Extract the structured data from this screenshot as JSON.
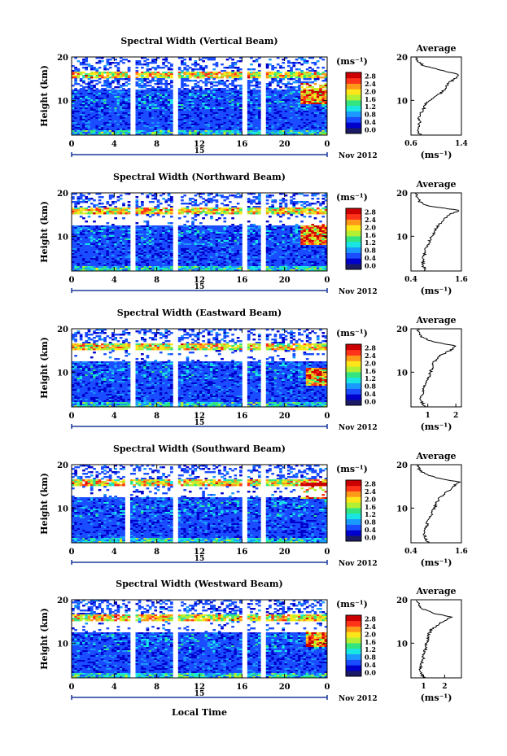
{
  "figure": {
    "x_title": "Local Time",
    "date_label": "Nov 2012",
    "day_label": "15",
    "y_label": "Height (km)",
    "avg_title": "Average",
    "avg_xunit": "(ms⁻¹)",
    "cbar_unit": "(ms⁻¹)",
    "cbar_ticks": [
      "0.0",
      "0.4",
      "0.8",
      "1.2",
      "1.6",
      "2.0",
      "2.4",
      "2.8"
    ],
    "colormap": [
      "#1a1a66",
      "#0000cc",
      "#1a4dff",
      "#1a99ff",
      "#19e5e5",
      "#33e57f",
      "#b3ef33",
      "#ffe61a",
      "#ff9919",
      "#ff3319",
      "#cc0000"
    ]
  },
  "chart_data": [
    {
      "type": "heatmap",
      "title": "Spectral Width (Vertical Beam)",
      "x_ticks": [
        "0",
        "4",
        "8",
        "12",
        "16",
        "20",
        "0"
      ],
      "y_ticks": [
        "20",
        "10"
      ],
      "xlim": [
        0,
        24
      ],
      "ylim": [
        2,
        20
      ],
      "gaps_hours": [
        [
          5.5,
          6
        ],
        [
          9.6,
          10
        ],
        [
          16,
          16.6
        ],
        [
          17.8,
          18.3
        ]
      ],
      "high_width_region": {
        "x": [
          21.5,
          24
        ],
        "y": [
          9,
          14
        ]
      },
      "avg_profile": {
        "xlim": [
          0.6,
          1.4
        ],
        "x_ticks": [
          "0.6",
          "1.4"
        ],
        "y_ticks": [
          "20",
          "10"
        ],
        "heights": [
          2,
          3,
          4,
          5,
          6,
          7,
          8,
          9,
          10,
          11,
          12,
          13,
          14,
          15,
          16,
          17,
          18,
          19,
          20
        ],
        "values": [
          0.75,
          0.7,
          0.72,
          0.74,
          0.72,
          0.75,
          0.8,
          0.82,
          0.9,
          1.0,
          1.1,
          1.15,
          1.2,
          1.3,
          1.35,
          1.05,
          0.8,
          0.7,
          0.68
        ]
      }
    },
    {
      "type": "heatmap",
      "title": "Spectral Width (Northward Beam)",
      "x_ticks": [
        "0",
        "4",
        "8",
        "12",
        "16",
        "20",
        "0"
      ],
      "y_ticks": [
        "20",
        "10"
      ],
      "xlim": [
        0,
        24
      ],
      "ylim": [
        2,
        20
      ],
      "gaps_hours": [
        [
          5.5,
          6
        ],
        [
          9.6,
          10
        ],
        [
          16,
          16.6
        ],
        [
          17.8,
          18.3
        ]
      ],
      "high_width_region": {
        "x": [
          21.5,
          24
        ],
        "y": [
          8,
          13
        ]
      },
      "avg_profile": {
        "xlim": [
          0.4,
          1.6
        ],
        "x_ticks": [
          "0.4",
          "1.6"
        ],
        "y_ticks": [
          "20",
          "10"
        ],
        "heights": [
          2,
          3,
          4,
          5,
          6,
          7,
          8,
          9,
          10,
          11,
          12,
          13,
          14,
          15,
          16,
          17,
          18,
          19,
          20
        ],
        "values": [
          0.75,
          0.7,
          0.68,
          0.7,
          0.72,
          0.75,
          0.8,
          0.85,
          0.9,
          0.95,
          1.0,
          1.1,
          1.2,
          1.3,
          1.55,
          0.8,
          0.6,
          0.55,
          0.5
        ]
      }
    },
    {
      "type": "heatmap",
      "title": "Spectral Width (Eastward Beam)",
      "x_ticks": [
        "0",
        "4",
        "8",
        "12",
        "16",
        "20",
        "0"
      ],
      "y_ticks": [
        "20",
        "10"
      ],
      "xlim": [
        0,
        24
      ],
      "ylim": [
        2,
        20
      ],
      "gaps_hours": [
        [
          5.5,
          6
        ],
        [
          9.6,
          10
        ],
        [
          16,
          16.6
        ],
        [
          17.8,
          18.3
        ]
      ],
      "high_width_region": {
        "x": [
          22,
          24
        ],
        "y": [
          7,
          11
        ]
      },
      "avg_profile": {
        "xlim": [
          0.4,
          2.2
        ],
        "x_ticks": [
          "1",
          "2"
        ],
        "y_ticks": [
          "20",
          "10"
        ],
        "heights": [
          2,
          3,
          4,
          5,
          6,
          7,
          8,
          9,
          10,
          11,
          12,
          13,
          14,
          15,
          16,
          17,
          18,
          19,
          20
        ],
        "values": [
          0.9,
          0.8,
          0.75,
          0.8,
          0.85,
          0.9,
          1.0,
          1.05,
          1.1,
          1.15,
          1.2,
          1.3,
          1.5,
          1.8,
          2.0,
          1.2,
          0.8,
          0.7,
          0.65
        ]
      }
    },
    {
      "type": "heatmap",
      "title": "Spectral Width (Southward Beam)",
      "x_ticks": [
        "0",
        "4",
        "8",
        "12",
        "16",
        "20",
        "0"
      ],
      "y_ticks": [
        "20",
        "10"
      ],
      "xlim": [
        0,
        24
      ],
      "ylim": [
        2,
        20
      ],
      "gaps_hours": [
        [
          5.1,
          5.6
        ],
        [
          9.6,
          10
        ],
        [
          16,
          16.6
        ],
        [
          17.8,
          18.3
        ]
      ],
      "high_width_region": {
        "x": [
          21.5,
          24
        ],
        "y": [
          12,
          16
        ]
      },
      "avg_profile": {
        "xlim": [
          0.4,
          1.6
        ],
        "x_ticks": [
          "0.4",
          "1.6"
        ],
        "y_ticks": [
          "20",
          "10"
        ],
        "heights": [
          2,
          3,
          4,
          5,
          6,
          7,
          8,
          9,
          10,
          11,
          12,
          13,
          14,
          15,
          16,
          17,
          18,
          19,
          20
        ],
        "values": [
          0.8,
          0.75,
          0.72,
          0.75,
          0.78,
          0.8,
          0.85,
          0.9,
          0.95,
          1.0,
          1.05,
          1.15,
          1.3,
          1.4,
          1.55,
          1.0,
          0.7,
          0.6,
          0.55
        ]
      }
    },
    {
      "type": "heatmap",
      "title": "Spectral Width (Westward Beam)",
      "x_ticks": [
        "0",
        "4",
        "8",
        "12",
        "16",
        "20",
        "0"
      ],
      "y_ticks": [
        "20",
        "10"
      ],
      "xlim": [
        0,
        24
      ],
      "ylim": [
        2,
        20
      ],
      "gaps_hours": [
        [
          5.5,
          6
        ],
        [
          9.6,
          10
        ],
        [
          16,
          16.6
        ],
        [
          17.8,
          18.3
        ]
      ],
      "high_width_region": {
        "x": [
          22,
          24
        ],
        "y": [
          9,
          13
        ]
      },
      "avg_profile": {
        "xlim": [
          0.4,
          2.8
        ],
        "x_ticks": [
          "1",
          "2"
        ],
        "y_ticks": [
          "20",
          "10"
        ],
        "heights": [
          2,
          3,
          4,
          5,
          6,
          7,
          8,
          9,
          10,
          11,
          12,
          13,
          14,
          15,
          16,
          17,
          18,
          19,
          20
        ],
        "values": [
          1.0,
          0.9,
          0.85,
          0.9,
          0.95,
          1.0,
          1.05,
          1.1,
          1.15,
          1.2,
          1.25,
          1.35,
          1.6,
          1.9,
          2.3,
          1.4,
          0.9,
          0.75,
          0.7
        ]
      }
    }
  ]
}
